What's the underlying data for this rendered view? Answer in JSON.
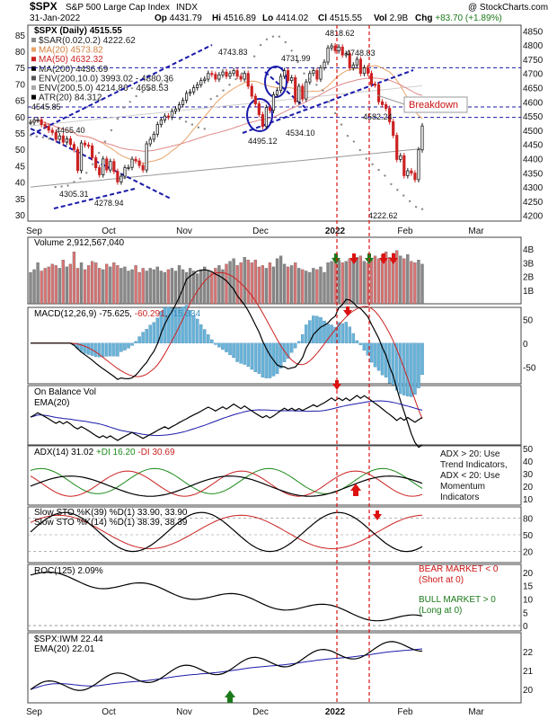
{
  "header": {
    "symbol": "$SPX",
    "name": "S&P 500 Large Cap Index",
    "exchange": "INDX",
    "watermark": "@ StockCharts.com",
    "date": "31-Jan-2022",
    "quote": [
      {
        "k": "Op",
        "v": "4431.79"
      },
      {
        "k": "Hi",
        "v": "4516.89"
      },
      {
        "k": "Lo",
        "v": "4414.02"
      },
      {
        "k": "Cl",
        "v": "4515.55"
      },
      {
        "k": "Vol",
        "v": "2.9B"
      },
      {
        "k": "Chg",
        "v": "+83.70 (+1.89%)",
        "up": true
      }
    ]
  },
  "x_axis": {
    "labels": [
      "Sep",
      "Oct",
      "Nov",
      "Dec",
      "2022",
      "Feb",
      "Mar"
    ]
  },
  "chart_data": [
    {
      "id": "price",
      "type": "candlestick",
      "title": "$SPX (Daily) 4515.55",
      "legend": [
        {
          "text": "$SAR(0.02,0.2) 4222.62",
          "color": "#8a8a8a"
        },
        {
          "text": "MA(20) 4573.82",
          "color": "#e8a46a"
        },
        {
          "text": "MA(50) 4632.32",
          "color": "#cc2222"
        },
        {
          "text": "MA(200) 4436.69",
          "color": "#000000"
        },
        {
          "text": "ENV(200,10.0) 3993.02 - 4880.36",
          "color": "#555555"
        },
        {
          "text": "ENV(200,5.0) 4214.86 - 4658.53",
          "color": "#aaaaaa"
        },
        {
          "text": "ATR(20) 84.312",
          "color": "#000000"
        }
      ],
      "right_axis": {
        "ticks": [
          4200,
          4250,
          4300,
          4350,
          4400,
          4450,
          4500,
          4550,
          4600,
          4650,
          4700,
          4750,
          4800,
          4850
        ],
        "range": [
          4180,
          4870
        ]
      },
      "left_axis": {
        "ticks": [
          30,
          35,
          40,
          45,
          50,
          55,
          60,
          65,
          70,
          75,
          80,
          85
        ],
        "label": "ATR"
      },
      "closes": [
        4528,
        4536,
        4537,
        4520,
        4514,
        4500,
        4492,
        4468,
        4480,
        4458,
        4470,
        4450,
        4432,
        4358,
        4455,
        4448,
        4445,
        4403,
        4368,
        4343,
        4399,
        4360,
        4390,
        4355,
        4318,
        4338,
        4368,
        4369,
        4398,
        4392,
        4376,
        4360,
        4452,
        4468,
        4486,
        4520,
        4536,
        4550,
        4546,
        4567,
        4575,
        4590,
        4605,
        4630,
        4635,
        4650,
        4660,
        4675,
        4680,
        4700,
        4697,
        4680,
        4695,
        4705,
        4690,
        4700,
        4710,
        4690,
        4680,
        4700,
        4655,
        4620,
        4593,
        4555,
        4513,
        4580,
        4570,
        4625,
        4640,
        4690,
        4710,
        4675,
        4685,
        4600,
        4655,
        4610,
        4670,
        4700,
        4710,
        4680,
        4720,
        4740,
        4790,
        4797,
        4780,
        4793,
        4765,
        4770,
        4720,
        4730,
        4750,
        4700,
        4720,
        4700,
        4662,
        4660,
        4600,
        4590,
        4577,
        4530,
        4482,
        4397,
        4410,
        4340,
        4357,
        4349,
        4326,
        4431,
        4515
      ],
      "sar_points": [
        4482,
        4478,
        4475,
        4470,
        4300,
        4302,
        4305,
        4318,
        4330,
        4350,
        4380,
        4420,
        4460,
        4500,
        4540,
        4580,
        4600,
        4620,
        4635,
        4645,
        4655,
        4665,
        4670,
        4560,
        4540,
        4530,
        4520,
        4510,
        4505,
        4610,
        4620,
        4640,
        4660,
        4680,
        4700,
        4720,
        4760,
        4800,
        4820,
        4830,
        4830,
        4810,
        4780,
        4740,
        4700,
        4680,
        4660,
        4640,
        4600,
        4560,
        4520,
        4480,
        4460,
        4430,
        4400,
        4380,
        4360,
        4340,
        4310,
        4290,
        4270,
        4250,
        4230,
        4222
      ],
      "annotations": [
        "4545.85",
        "4465.40",
        "4305.31",
        "4278.94",
        "4743.83",
        "4731.99",
        "4818.62",
        "4748.83",
        "4495.12",
        "4534.10",
        "4582.24",
        "4222.62",
        "Breakdown"
      ]
    },
    {
      "id": "volume",
      "type": "bar",
      "title": "Volume 2,912,567,040",
      "right_axis": {
        "ticks": [
          "1B",
          "2B",
          "3B",
          "4B"
        ]
      },
      "values_billions": [
        2.3,
        2.5,
        3.0,
        2.4,
        2.6,
        2.7,
        2.9,
        2.8,
        2.6,
        3.2,
        2.7,
        2.9,
        3.8,
        2.6,
        3.0,
        2.5,
        2.8,
        3.1,
        3.0,
        2.6,
        2.5,
        2.9,
        2.7,
        3.0,
        2.8,
        2.6,
        2.7,
        2.4,
        2.5,
        2.8,
        2.3,
        2.6,
        2.4,
        2.6,
        2.5,
        2.7,
        2.4,
        2.3,
        2.5,
        2.6,
        2.4,
        2.8,
        2.5,
        2.3,
        2.6,
        2.4,
        2.2,
        2.5,
        2.7,
        2.4,
        2.3,
        2.6,
        2.8,
        2.5,
        2.9,
        3.1,
        3.3,
        2.8,
        3.0,
        3.4,
        3.2,
        3.0,
        3.2,
        2.7,
        2.8,
        2.6,
        3.0,
        2.7,
        3.3,
        3.5,
        2.9,
        2.7,
        2.8,
        3.0,
        2.6,
        2.5,
        2.4,
        2.3,
        2.6,
        2.5,
        2.7,
        2.3,
        3.0,
        3.1,
        3.4,
        3.2,
        3.0,
        3.1,
        3.3,
        3.2,
        3.4,
        3.5,
        3.1,
        3.0,
        3.2,
        3.5,
        3.3,
        3.6,
        3.8,
        3.4,
        3.7,
        3.9,
        3.5,
        3.3,
        3.6,
        3.1,
        3.0,
        3.2,
        2.9
      ],
      "volume_signals": [
        "buy",
        "sell",
        "buy",
        "sell",
        "sell"
      ]
    },
    {
      "id": "macd",
      "type": "line",
      "title": "MACD(12,26,9) -75.625, -60.291, -15.334",
      "legend": [
        {
          "text": "-75.625",
          "color": "#000000"
        },
        {
          "text": "-60.291",
          "color": "#cc2222"
        },
        {
          "text": "-15.334",
          "color": "#3a8fbf"
        }
      ],
      "right_axis": {
        "ticks": [
          50,
          0,
          -50
        ],
        "range": [
          -85,
          75
        ]
      }
    },
    {
      "id": "obv",
      "type": "line",
      "title": "On Balance Vol",
      "legend": [
        {
          "text": "EMA(20)",
          "color": "#1a1aaa"
        }
      ]
    },
    {
      "id": "adx",
      "type": "line",
      "title": "ADX(14) 31.02 +DI 16.20 -DI 30.69",
      "legend": [
        {
          "text": "ADX(14) 31.02",
          "color": "#000000"
        },
        {
          "text": "+DI 16.20",
          "color": "#1a8a1a"
        },
        {
          "text": "-DI 30.69",
          "color": "#cc2222"
        }
      ],
      "right_axis": {
        "ticks": [
          10,
          20,
          30,
          40,
          50
        ],
        "range": [
          5,
          52
        ]
      },
      "note": "ADX > 20: Use Trend Indicators, ADX < 20: Use Momentum Indicators"
    },
    {
      "id": "sto",
      "type": "line",
      "title": "Slow STO %K(39) %D(1) 33.90, 33.90",
      "title2": "Slow STO %K(14) %D(1) 38.39, 38.39",
      "legend": [
        {
          "text": "33.90",
          "color": "#cc2222"
        },
        {
          "text": "38.39",
          "color": "#cc2222"
        }
      ],
      "right_axis": {
        "ticks": [
          20,
          50,
          80
        ],
        "range": [
          0,
          100
        ]
      }
    },
    {
      "id": "roc",
      "type": "line",
      "title": "ROC(125) 2.09%",
      "right_axis": {
        "ticks": [
          0,
          5,
          10,
          15,
          20
        ],
        "range": [
          -2,
          23
        ]
      },
      "note_bear": "BEAR MARKET < 0 (Short at 0)",
      "note_bull": "BULL MARKET > 0 (Long at 0)"
    },
    {
      "id": "ratio",
      "type": "line",
      "title": "$SPX:IWM 22.44",
      "legend": [
        {
          "text": "EMA(20) 22.01",
          "color": "#1a1aaa"
        }
      ],
      "right_axis": {
        "ticks": [
          20,
          21,
          22
        ],
        "range": [
          19.3,
          23
        ]
      }
    }
  ],
  "colors": {
    "up": "#1a1a1a",
    "down": "#cc2222",
    "vol_up": "#d87474",
    "vol_flat": "#888888",
    "trend": "#1a1aaa",
    "signal_red": "#dd1111",
    "signal_green": "#1a7a1a"
  }
}
